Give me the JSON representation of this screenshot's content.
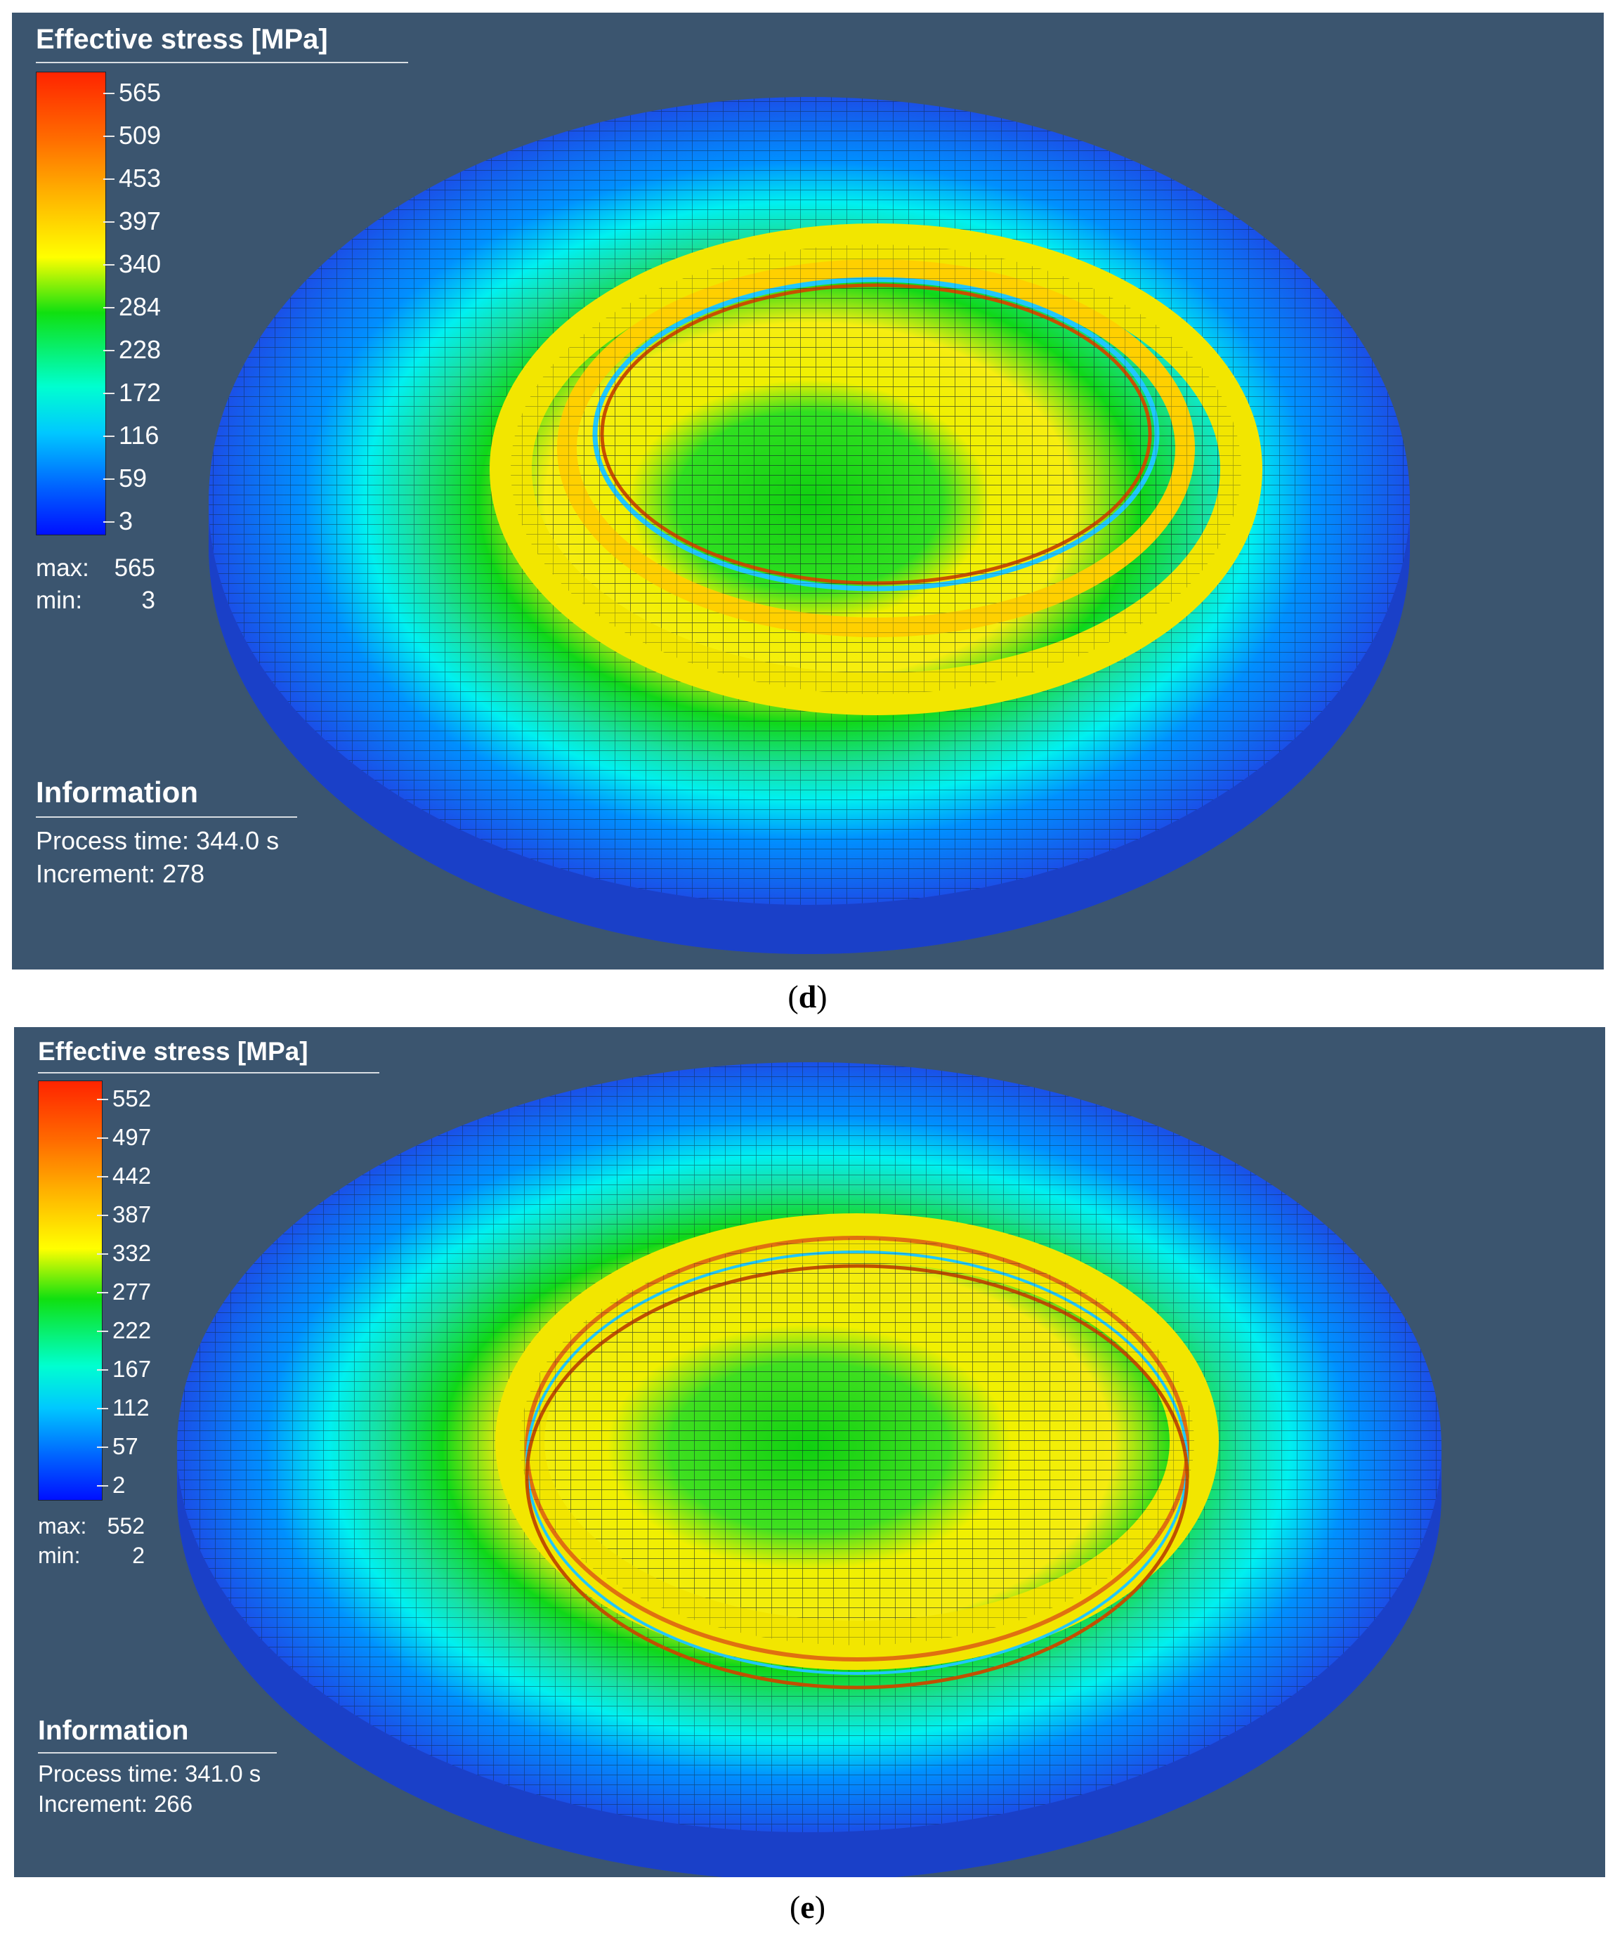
{
  "colors": {
    "background": "#3b556f",
    "contour_red": "#ff2400",
    "contour_yellow": "#ffff00",
    "contour_green": "#10e010",
    "contour_cyan": "#00ffd0",
    "contour_blue": "#0010ff"
  },
  "panels": [
    {
      "legend": {
        "title": "Effective stress [MPa]",
        "ticks": [
          "565",
          "509",
          "453",
          "397",
          "340",
          "284",
          "228",
          "172",
          "116",
          "59",
          "3"
        ],
        "max_label": "max:",
        "max_value": "565",
        "min_label": "min:",
        "min_value": "3"
      },
      "info": {
        "title": "Information",
        "process_time": "Process time: 344.0 s",
        "increment": "Increment: 278"
      },
      "caption": {
        "open": "(",
        "letter": "d",
        "close": ")"
      }
    },
    {
      "legend": {
        "title": "Effective stress [MPa]",
        "ticks": [
          "552",
          "497",
          "442",
          "387",
          "332",
          "277",
          "222",
          "167",
          "112",
          "57",
          "2"
        ],
        "max_label": "max:",
        "max_value": "552",
        "min_label": "min:",
        "min_value": "2"
      },
      "info": {
        "title": "Information",
        "process_time": "Process time: 341.0 s",
        "increment": "Increment: 266"
      },
      "caption": {
        "open": "(",
        "letter": "e",
        "close": ")"
      }
    }
  ]
}
